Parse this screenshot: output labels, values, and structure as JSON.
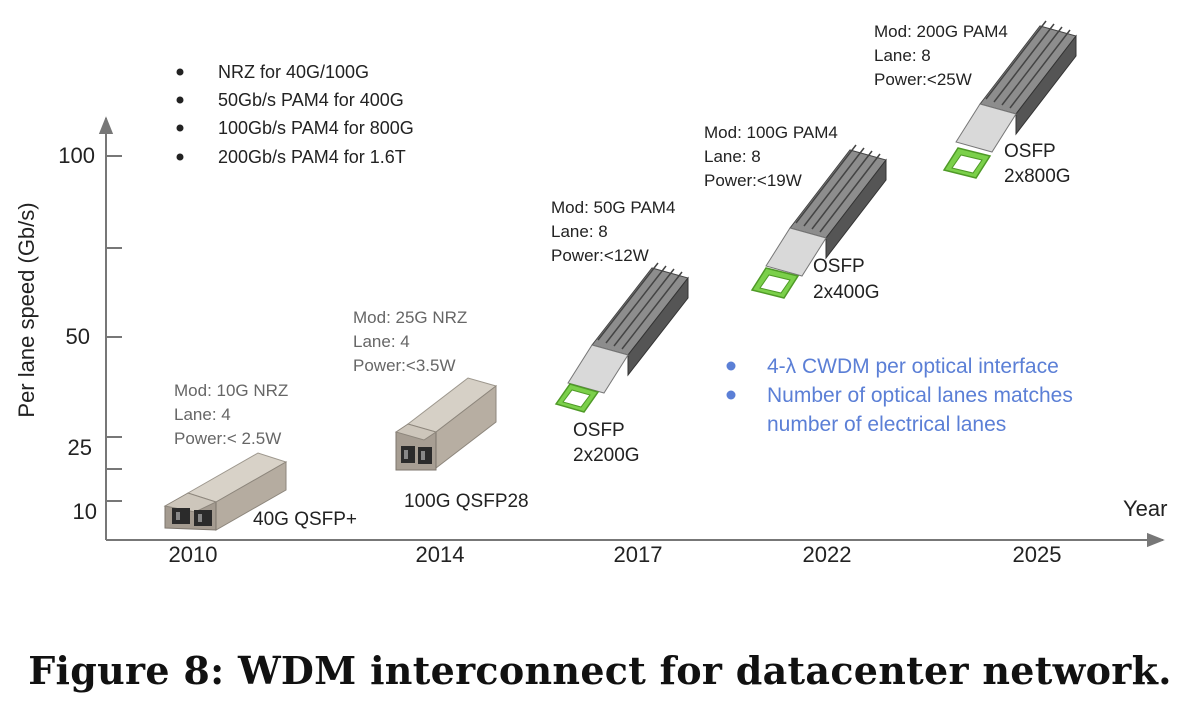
{
  "chart_data": {
    "type": "scatter",
    "xlabel": "Year",
    "ylabel": "Per lane speed (Gb/s)",
    "x_ticks": [
      "2010",
      "2014",
      "2017",
      "2022",
      "2025"
    ],
    "y_ticks": [
      "10",
      "25",
      "50",
      "100"
    ],
    "points": [
      {
        "x": "2010",
        "module": "40G QSFP+",
        "notes": [
          "Mod: 10G NRZ",
          "Lane: 4",
          "Power:< 2.5W"
        ]
      },
      {
        "x": "2014",
        "module": "100G QSFP28",
        "notes": [
          "Mod: 25G NRZ",
          "Lane: 4",
          "Power:<3.5W"
        ]
      },
      {
        "x": "2017",
        "module": [
          "OSFP",
          "2x200G"
        ],
        "notes": [
          "Mod: 50G PAM4",
          "Lane: 8",
          "Power:<12W"
        ]
      },
      {
        "x": "2022",
        "module": [
          "OSFP",
          "2x400G"
        ],
        "notes": [
          "Mod: 100G PAM4",
          "Lane: 8",
          "Power:<19W"
        ]
      },
      {
        "x": "2025",
        "module": [
          "OSFP",
          "2x800G"
        ],
        "notes": [
          "Mod: 200G PAM4",
          "Lane: 8",
          "Power:<25W"
        ]
      }
    ],
    "bullets_top": [
      "NRZ for 40G/100G",
      "50Gb/s PAM4 for 400G",
      "100Gb/s PAM4 for 800G",
      "200Gb/s PAM4 for 1.6T"
    ],
    "bullets_blue": [
      "4-λ CWDM per optical interface",
      "Number of optical lanes matches",
      "number of electrical lanes"
    ],
    "colors": {
      "axis": "#777777",
      "text": "#222222",
      "gray_note": "#666666",
      "blue": "#5b7fd6",
      "module_green": "#7bd04a",
      "module_metal": "#bfb7aa"
    }
  },
  "caption": "Figure 8: WDM interconnect for datacenter network."
}
